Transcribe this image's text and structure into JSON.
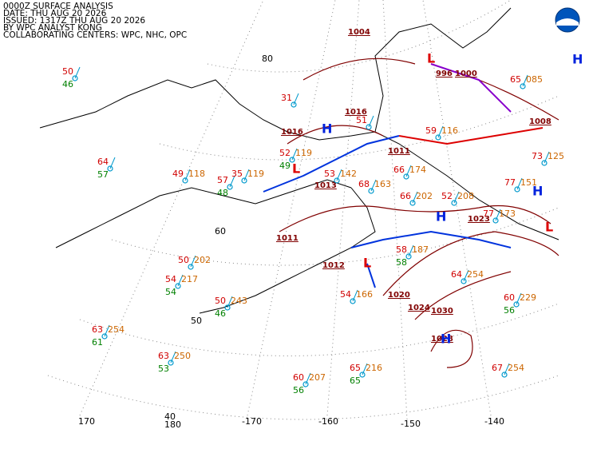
{
  "header": [
    "0000Z SURFACE ANALYSIS",
    "DATE: THU AUG 20 2026",
    "ISSUED: 1317Z THU AUG 20 2026",
    "BY WPC ANALYST KONG",
    "COLLABORATING CENTERS: WPC, NHC, OPC"
  ],
  "graticule": [
    "80",
    "60",
    "50",
    "40",
    "180",
    "170",
    "-170",
    "-160",
    "-150",
    "-140"
  ],
  "isobars": [
    "1004",
    "1016",
    "1016",
    "1013",
    "1011",
    "1011",
    "1012",
    "1023",
    "1020",
    "1024",
    "1030",
    "1008",
    "1028",
    "996",
    "1000"
  ],
  "centers": [
    "H",
    "H",
    "H",
    "H",
    "H",
    "L",
    "L",
    "L",
    "L"
  ],
  "stations": [
    {
      "t": "50",
      "td": "46"
    },
    {
      "t": "64",
      "td": "57"
    },
    {
      "t": "49",
      "p": "118"
    },
    {
      "t": "57",
      "td": "48"
    },
    {
      "t": "35",
      "p": "119"
    },
    {
      "t": "52",
      "p": "119",
      "td": "49"
    },
    {
      "t": "53",
      "p": "142"
    },
    {
      "t": "68",
      "p": "163"
    },
    {
      "t": "66",
      "p": "174"
    },
    {
      "t": "66",
      "p": "202"
    },
    {
      "t": "52",
      "p": "208"
    },
    {
      "t": "77",
      "p": "151"
    },
    {
      "t": "73",
      "p": "125"
    },
    {
      "t": "50",
      "p": "202"
    },
    {
      "t": "54",
      "p": "217",
      "td": "54"
    },
    {
      "t": "50",
      "p": "243",
      "td": "46"
    },
    {
      "t": "63",
      "p": "254",
      "td": "61"
    },
    {
      "t": "63",
      "p": "250",
      "td": "53"
    },
    {
      "t": "60",
      "p": "207",
      "td": "56"
    },
    {
      "t": "65",
      "p": "216",
      "td": "65"
    },
    {
      "t": "54",
      "p": "166"
    },
    {
      "t": "58",
      "p": "187",
      "td": "58"
    },
    {
      "t": "64",
      "p": "254"
    },
    {
      "t": "60",
      "p": "229",
      "td": "56"
    },
    {
      "t": "67",
      "p": "254"
    },
    {
      "t": "77",
      "p": "173"
    },
    {
      "t": "65",
      "p": "085"
    },
    {
      "t": "59",
      "p": "116"
    },
    {
      "t": "31"
    },
    {
      "t": "51"
    }
  ]
}
